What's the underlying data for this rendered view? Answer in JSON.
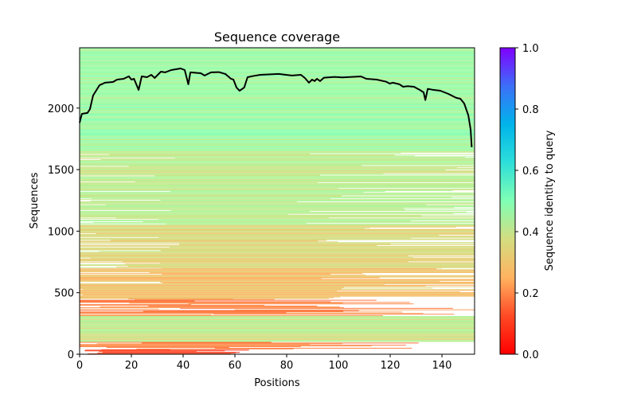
{
  "chart_data": {
    "type": "heatmap",
    "title": "Sequence coverage",
    "xlabel": "Positions",
    "ylabel": "Sequences",
    "xlim": [
      0,
      152.6
    ],
    "ylim": [
      0,
      2490
    ],
    "xticks": [
      0,
      20,
      40,
      60,
      80,
      100,
      120,
      140
    ],
    "yticks": [
      0,
      500,
      1000,
      1500,
      2000
    ],
    "grid": false,
    "colorbar": {
      "label": "Sequence identity to query",
      "colormap": "rainbow_r",
      "range": [
        0.0,
        1.0
      ],
      "ticks": [
        "0.0",
        "0.2",
        "0.4",
        "0.6",
        "0.8",
        "1.0"
      ],
      "placement": "right"
    },
    "identity_bands": [
      {
        "from": 0,
        "to": 40,
        "identity_min": 0.03,
        "identity_max": 0.12,
        "coverage": "partial-left"
      },
      {
        "from": 40,
        "to": 100,
        "identity_min": 0.12,
        "identity_max": 0.22,
        "coverage": "partial"
      },
      {
        "from": 100,
        "to": 310,
        "identity_min": 0.3,
        "identity_max": 0.45,
        "coverage": "full"
      },
      {
        "from": 310,
        "to": 450,
        "identity_min": 0.12,
        "identity_max": 0.22,
        "coverage": "partial"
      },
      {
        "from": 450,
        "to": 700,
        "identity_min": 0.22,
        "identity_max": 0.32,
        "coverage": "mostly"
      },
      {
        "from": 700,
        "to": 1050,
        "identity_min": 0.28,
        "identity_max": 0.36,
        "coverage": "mostly"
      },
      {
        "from": 1050,
        "to": 1650,
        "identity_min": 0.33,
        "identity_max": 0.43,
        "coverage": "mostly"
      },
      {
        "from": 1650,
        "to": 2490,
        "identity_min": 0.38,
        "identity_max": 0.5,
        "coverage": "full"
      }
    ],
    "series": [
      {
        "name": "coverage",
        "color": "#000000",
        "x": [
          0,
          0.3,
          0.9,
          3,
          4,
          5.2,
          7.7,
          9.8,
          12.9,
          14.5,
          17,
          19,
          20,
          21,
          22.8,
          24,
          26,
          27.7,
          29,
          31.4,
          33,
          35.4,
          39,
          40.6,
          42,
          42.8,
          46.8,
          48.3,
          50.8,
          53.8,
          56.3,
          58.5,
          59.4,
          60.6,
          61.8,
          63.6,
          64.9,
          66.7,
          69.8,
          76.9,
          82,
          85.5,
          87,
          88.6,
          89.8,
          90.8,
          91.7,
          92.9,
          94.4,
          98.5,
          101.5,
          108.7,
          110.8,
          114.8,
          118.5,
          119.8,
          121,
          123.6,
          125,
          126.8,
          129.2,
          131.3,
          132.9,
          133.6,
          134.5,
          136.3,
          139.4,
          142.5,
          145.5,
          147.1,
          148.6,
          150.2,
          151.1,
          151.5
        ],
        "y": [
          1880,
          1908,
          1953,
          1960,
          1992,
          2102,
          2186,
          2206,
          2212,
          2231,
          2238,
          2258,
          2231,
          2238,
          2147,
          2258,
          2251,
          2270,
          2245,
          2296,
          2290,
          2309,
          2322,
          2309,
          2193,
          2290,
          2283,
          2264,
          2290,
          2292,
          2277,
          2238,
          2232,
          2167,
          2141,
          2167,
          2251,
          2259,
          2270,
          2277,
          2264,
          2270,
          2245,
          2206,
          2231,
          2219,
          2238,
          2219,
          2247,
          2253,
          2249,
          2257,
          2238,
          2231,
          2214,
          2199,
          2206,
          2193,
          2173,
          2178,
          2173,
          2149,
          2128,
          2065,
          2156,
          2149,
          2141,
          2115,
          2083,
          2076,
          2037,
          1940,
          1824,
          1682
        ]
      }
    ]
  }
}
